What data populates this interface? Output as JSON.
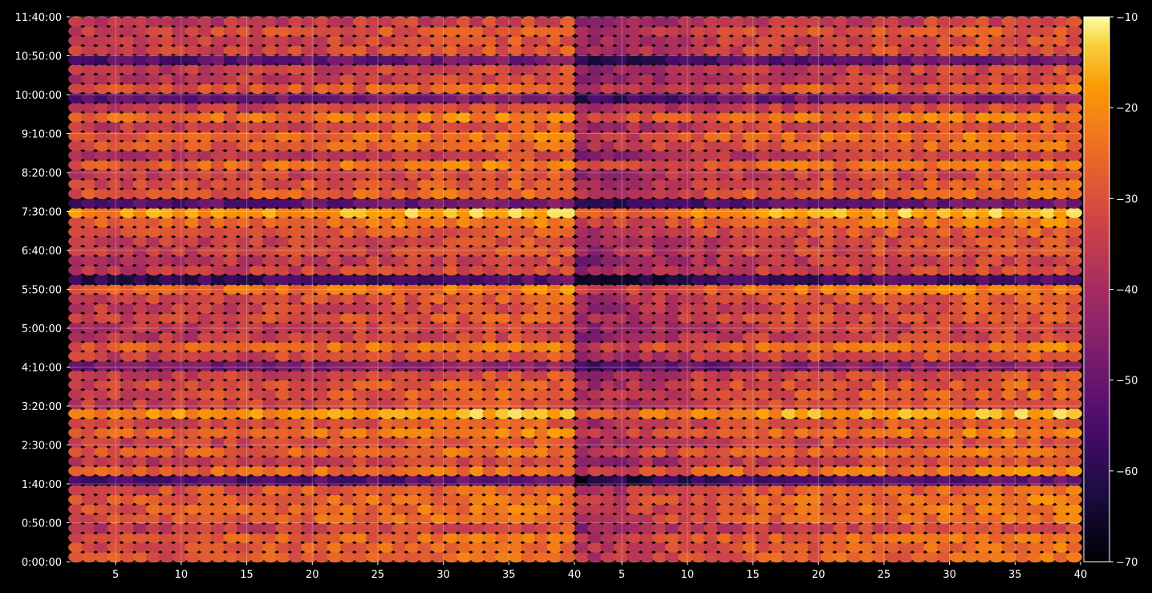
{
  "chart_data": {
    "type": "heatmap",
    "title": "",
    "xlabel": "",
    "ylabel": "",
    "grid": true,
    "colormap": "inferno",
    "colorbar": {
      "vmin": -70,
      "vmax": -10,
      "ticks": [
        "−10",
        "−20",
        "−30",
        "−40",
        "−50",
        "−60",
        "−70"
      ],
      "tick_values": [
        -10,
        -20,
        -30,
        -40,
        -50,
        -60,
        -70
      ]
    },
    "panels": [
      {
        "name": "",
        "x_ticks": [
          "5",
          "10",
          "15",
          "20",
          "25",
          "30",
          "35",
          "40"
        ],
        "x_tick_values": [
          5,
          10,
          15,
          20,
          25,
          30,
          35,
          40
        ],
        "xlim": [
          1.5,
          40
        ]
      },
      {
        "name": "",
        "x_ticks": [
          "5",
          "10",
          "15",
          "20",
          "25",
          "30",
          "35",
          "40"
        ],
        "x_tick_values": [
          5,
          10,
          15,
          20,
          25,
          30,
          35,
          40
        ],
        "xlim": [
          1.5,
          40
        ]
      }
    ],
    "y_ticks": [
      "11:40:00",
      "10:50:00",
      "10:00:00",
      "9:10:00",
      "8:20:00",
      "7:30:00",
      "6:40:00",
      "5:50:00",
      "5:00:00",
      "4:10:00",
      "3:20:00",
      "2:30:00",
      "1:40:00",
      "0:50:00",
      "0:00:00"
    ],
    "y_tick_seconds": [
      42000,
      39000,
      36000,
      33000,
      30000,
      27000,
      24000,
      21000,
      18000,
      15000,
      12000,
      9000,
      6000,
      3000,
      0
    ],
    "ylim_seconds": [
      0,
      42000
    ],
    "columns": 39,
    "rows": 57,
    "value_range_observed": [
      -70,
      -12
    ],
    "colors": {
      "background": "#000000",
      "axis": "#ffffff",
      "text": "#ffffff"
    }
  }
}
